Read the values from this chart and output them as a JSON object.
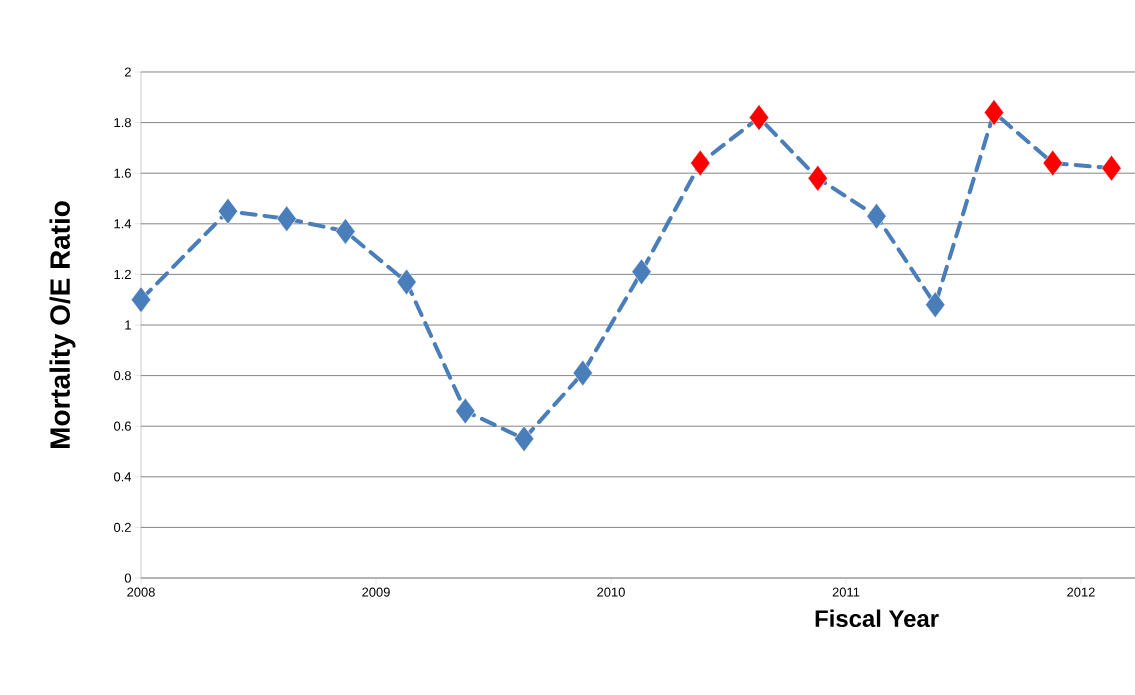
{
  "chart_data": {
    "type": "line",
    "xlabel": "Fiscal Year",
    "ylabel": "Mortality O/E Ratio",
    "x": [
      2008.0,
      2008.37,
      2008.62,
      2008.87,
      2009.13,
      2009.38,
      2009.63,
      2009.88,
      2010.13,
      2010.38,
      2010.63,
      2010.88,
      2011.13,
      2011.38,
      2011.63,
      2011.88,
      2012.13
    ],
    "series": [
      {
        "color": "#4a7ebb",
        "values": [
          1.1,
          1.45,
          1.42,
          1.37,
          1.17,
          0.66,
          0.55,
          0.81,
          1.21,
          1.64,
          1.82,
          1.58,
          1.43,
          1.08,
          1.84,
          1.64,
          1.62
        ],
        "colors": [
          "#4a7ebb",
          "#4a7ebb",
          "#4a7ebb",
          "#4a7ebb",
          "#4a7ebb",
          "#4a7ebb",
          "#4a7ebb",
          "#4a7ebb",
          "#4a7ebb",
          "#ff0000",
          "#ff0000",
          "#ff0000",
          "#4a7ebb",
          "#4a7ebb",
          "#ff0000",
          "#ff0000",
          "#ff0000"
        ]
      }
    ],
    "xlim": [
      2008,
      2012.23
    ],
    "xticks": [
      2008,
      2009,
      2010,
      2011,
      2012
    ],
    "ylim": [
      0,
      2
    ],
    "yticks": [
      0,
      0.2,
      0.4,
      0.6,
      0.8,
      1,
      1.2,
      1.4,
      1.6,
      1.8,
      2
    ],
    "grid": "y",
    "marker": "diamond",
    "line_style": "dashed"
  }
}
